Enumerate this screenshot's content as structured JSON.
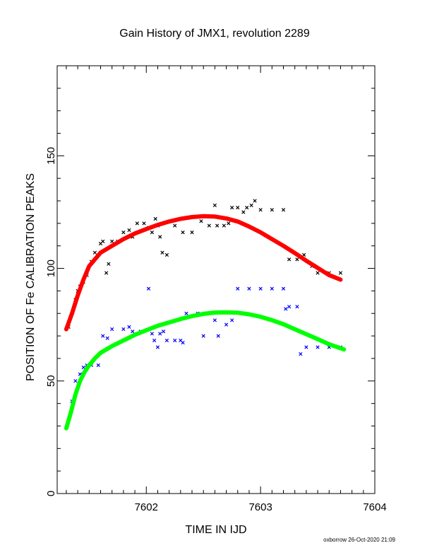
{
  "chart_data": {
    "type": "scatter",
    "title": "Gain History of JMX1, revolution 2289",
    "xlabel": "TIME IN IJD",
    "ylabel": "POSITION OF Fe CALIBRATION PEAKS",
    "xlim": [
      7601.22,
      7604.0
    ],
    "ylim": [
      0,
      190
    ],
    "x_ticks": [
      7602,
      7603,
      7604
    ],
    "y_ticks": [
      0,
      50,
      100,
      150
    ],
    "grid": false,
    "footer": "oxborrow 26-Oct-2020 21:09",
    "colors": {
      "black": "#000000",
      "blue": "#0000ff",
      "red": "#ff0000",
      "green": "#00ff00"
    },
    "series": [
      {
        "color": "black",
        "marker": "x",
        "points": [
          [
            7601.32,
            74
          ],
          [
            7601.35,
            80
          ],
          [
            7601.38,
            86
          ],
          [
            7601.4,
            90
          ],
          [
            7601.42,
            92
          ],
          [
            7601.45,
            94
          ],
          [
            7601.48,
            97
          ],
          [
            7601.52,
            103
          ],
          [
            7601.55,
            107
          ],
          [
            7601.6,
            111
          ],
          [
            7601.62,
            112
          ],
          [
            7601.65,
            98
          ],
          [
            7601.67,
            102
          ],
          [
            7601.7,
            112
          ],
          [
            7601.75,
            112
          ],
          [
            7601.8,
            116
          ],
          [
            7601.85,
            117
          ],
          [
            7601.88,
            114
          ],
          [
            7601.92,
            120
          ],
          [
            7601.98,
            120
          ],
          [
            7602.02,
            118
          ],
          [
            7602.05,
            116
          ],
          [
            7602.08,
            122
          ],
          [
            7602.1,
            119
          ],
          [
            7602.12,
            114
          ],
          [
            7602.14,
            107
          ],
          [
            7602.18,
            106
          ],
          [
            7602.25,
            119
          ],
          [
            7602.32,
            116
          ],
          [
            7602.4,
            116
          ],
          [
            7602.48,
            121
          ],
          [
            7602.55,
            119
          ],
          [
            7602.6,
            128
          ],
          [
            7602.62,
            119
          ],
          [
            7602.68,
            119
          ],
          [
            7602.72,
            120
          ],
          [
            7602.75,
            127
          ],
          [
            7602.8,
            127
          ],
          [
            7602.85,
            125
          ],
          [
            7602.88,
            127
          ],
          [
            7602.92,
            128
          ],
          [
            7602.95,
            130
          ],
          [
            7603.0,
            126
          ],
          [
            7603.1,
            126
          ],
          [
            7603.2,
            126
          ],
          [
            7603.25,
            104
          ],
          [
            7603.32,
            104
          ],
          [
            7603.38,
            106
          ],
          [
            7603.45,
            101
          ],
          [
            7603.5,
            98
          ],
          [
            7603.6,
            98
          ],
          [
            7603.7,
            98
          ]
        ]
      },
      {
        "color": "blue",
        "marker": "x",
        "points": [
          [
            7601.35,
            41
          ],
          [
            7601.38,
            50
          ],
          [
            7601.42,
            53
          ],
          [
            7601.45,
            56
          ],
          [
            7601.48,
            57
          ],
          [
            7601.52,
            57
          ],
          [
            7601.58,
            57
          ],
          [
            7601.62,
            70
          ],
          [
            7601.66,
            69
          ],
          [
            7601.7,
            73
          ],
          [
            7601.8,
            73
          ],
          [
            7601.85,
            74
          ],
          [
            7601.88,
            72
          ],
          [
            7601.95,
            72
          ],
          [
            7602.02,
            91
          ],
          [
            7602.05,
            71
          ],
          [
            7602.07,
            68
          ],
          [
            7602.1,
            65
          ],
          [
            7602.12,
            71
          ],
          [
            7602.15,
            72
          ],
          [
            7602.18,
            68
          ],
          [
            7602.25,
            68
          ],
          [
            7602.3,
            68
          ],
          [
            7602.32,
            67
          ],
          [
            7602.35,
            80
          ],
          [
            7602.45,
            80
          ],
          [
            7602.5,
            70
          ],
          [
            7602.6,
            77
          ],
          [
            7602.63,
            70
          ],
          [
            7602.7,
            75
          ],
          [
            7602.75,
            77
          ],
          [
            7602.8,
            91
          ],
          [
            7602.9,
            91
          ],
          [
            7603.0,
            91
          ],
          [
            7603.1,
            91
          ],
          [
            7603.2,
            91
          ],
          [
            7603.22,
            82
          ],
          [
            7603.25,
            83
          ],
          [
            7603.32,
            83
          ],
          [
            7603.35,
            62
          ],
          [
            7603.4,
            65
          ],
          [
            7603.5,
            65
          ],
          [
            7603.6,
            65
          ],
          [
            7603.7,
            65
          ]
        ]
      },
      {
        "color": "red",
        "marker": "line",
        "points": [
          [
            7601.3,
            73
          ],
          [
            7601.35,
            80
          ],
          [
            7601.4,
            88
          ],
          [
            7601.45,
            95
          ],
          [
            7601.5,
            101
          ],
          [
            7601.55,
            104
          ],
          [
            7601.6,
            107
          ],
          [
            7601.7,
            110
          ],
          [
            7601.8,
            113
          ],
          [
            7601.9,
            115.5
          ],
          [
            7602.0,
            117.5
          ],
          [
            7602.1,
            119.3
          ],
          [
            7602.2,
            120.8
          ],
          [
            7602.3,
            122
          ],
          [
            7602.4,
            122.8
          ],
          [
            7602.5,
            123.2
          ],
          [
            7602.6,
            123
          ],
          [
            7602.7,
            122.2
          ],
          [
            7602.8,
            120.8
          ],
          [
            7602.9,
            118.6
          ],
          [
            7603.0,
            116
          ],
          [
            7603.1,
            113
          ],
          [
            7603.2,
            110
          ],
          [
            7603.3,
            106.8
          ],
          [
            7603.4,
            103.4
          ],
          [
            7603.5,
            100.2
          ],
          [
            7603.6,
            97
          ],
          [
            7603.7,
            95
          ]
        ]
      },
      {
        "color": "green",
        "marker": "line",
        "points": [
          [
            7601.3,
            29
          ],
          [
            7601.34,
            36
          ],
          [
            7601.38,
            44
          ],
          [
            7601.42,
            50
          ],
          [
            7601.46,
            54
          ],
          [
            7601.5,
            57
          ],
          [
            7601.55,
            60
          ],
          [
            7601.6,
            62.5
          ],
          [
            7601.7,
            65.5
          ],
          [
            7601.8,
            68
          ],
          [
            7601.9,
            70.5
          ],
          [
            7602.0,
            72.5
          ],
          [
            7602.1,
            74.5
          ],
          [
            7602.2,
            76
          ],
          [
            7602.3,
            77.5
          ],
          [
            7602.4,
            78.8
          ],
          [
            7602.5,
            79.8
          ],
          [
            7602.6,
            80.4
          ],
          [
            7602.7,
            80.5
          ],
          [
            7602.8,
            80.3
          ],
          [
            7602.9,
            79.6
          ],
          [
            7603.0,
            78.5
          ],
          [
            7603.1,
            77
          ],
          [
            7603.2,
            75.2
          ],
          [
            7603.3,
            73
          ],
          [
            7603.4,
            70.8
          ],
          [
            7603.5,
            68.6
          ],
          [
            7603.6,
            66.3
          ],
          [
            7603.73,
            64
          ]
        ]
      }
    ]
  }
}
